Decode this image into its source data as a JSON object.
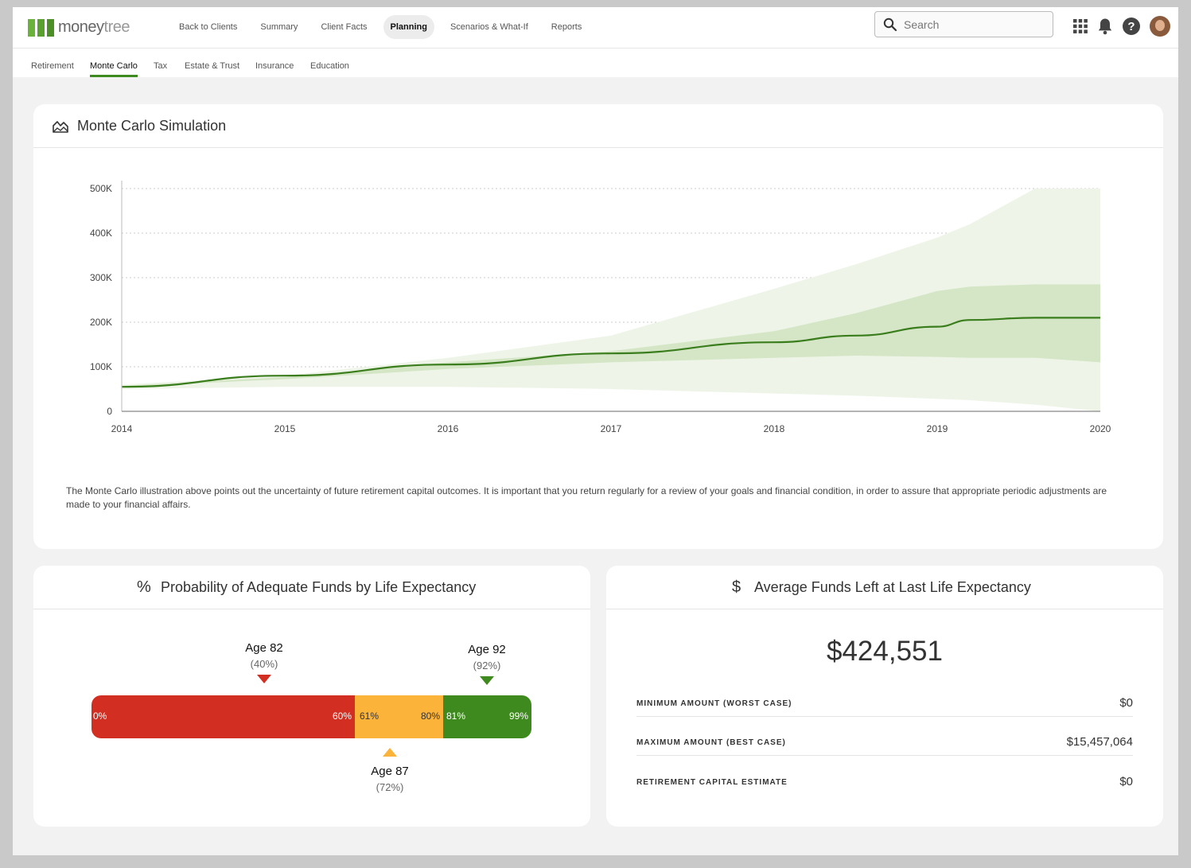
{
  "app": {
    "logo_money": "money",
    "logo_tree": "tree"
  },
  "nav": {
    "items": [
      "Back to Clients",
      "Summary",
      "Client Facts",
      "Planning",
      "Scenarios & What-If",
      "Reports"
    ],
    "active": "Planning"
  },
  "search": {
    "placeholder": "Search"
  },
  "subnav": {
    "items": [
      "Retirement",
      "Monte Carlo",
      "Tax",
      "Estate & Trust",
      "Insurance",
      "Education"
    ],
    "active": "Monte Carlo"
  },
  "monte_carlo": {
    "title": "Monte Carlo Simulation",
    "description": "The Monte Carlo illustration above points out the uncertainty of future retirement capital outcomes. It is important that you return regularly for a review of your goals and financial condition, in order to assure that appropriate periodic adjustments are made to your financial affairs."
  },
  "chart_data": {
    "type": "area",
    "x": [
      2014,
      2015,
      2016,
      2017,
      2018,
      2018.5,
      2019,
      2019.2,
      2019.6,
      2020
    ],
    "x_ticks": [
      "2014",
      "2015",
      "2016",
      "2017",
      "2018",
      "2019",
      "2020"
    ],
    "y_ticks": [
      "0",
      "100K",
      "200K",
      "300K",
      "400K",
      "500K"
    ],
    "ylim": [
      0,
      500000
    ],
    "grid": true,
    "series": [
      {
        "role": "outer_band_upper",
        "values": [
          60000,
          80000,
          120000,
          170000,
          275000,
          330000,
          390000,
          420000,
          500000,
          500000
        ]
      },
      {
        "role": "outer_band_lower",
        "values": [
          50000,
          55000,
          55000,
          50000,
          40000,
          35000,
          28000,
          25000,
          15000,
          0
        ]
      },
      {
        "role": "inner_band_upper",
        "values": [
          57000,
          77000,
          110000,
          135000,
          180000,
          220000,
          270000,
          280000,
          285000,
          285000
        ]
      },
      {
        "role": "inner_band_lower",
        "values": [
          55000,
          72000,
          95000,
          110000,
          120000,
          125000,
          122000,
          120000,
          120000,
          110000
        ]
      },
      {
        "role": "median",
        "values": [
          55000,
          80000,
          105000,
          130000,
          155000,
          170000,
          190000,
          205000,
          210000,
          210000
        ]
      }
    ],
    "colors": {
      "outer": "#eef5e8",
      "inner": "#d5e6c6",
      "line": "#3a7d1d"
    }
  },
  "probability": {
    "title": "Probability of Adequate Funds by Life Expectancy",
    "markers": [
      {
        "age": "Age 82",
        "pct": "(40%)",
        "color": "#d22f22"
      },
      {
        "age": "Age 87",
        "pct": "(72%)",
        "color": "#fbb33a"
      },
      {
        "age": "Age 92",
        "pct": "(92%)",
        "color": "#3f8a1f"
      }
    ],
    "segments": [
      {
        "start": "0%",
        "end": "60%",
        "color": "#d22f22"
      },
      {
        "start": "61%",
        "end": "80%",
        "color": "#fbb33a"
      },
      {
        "start": "81%",
        "end": "99%",
        "color": "#3f8a1f"
      }
    ]
  },
  "average": {
    "title": "Average Funds Left at Last Life Expectancy",
    "amount": "$424,551",
    "rows": [
      {
        "label": "MINIMUM AMOUNT (WORST CASE)",
        "value": "$0"
      },
      {
        "label": "MAXIMUM AMOUNT (BEST CASE)",
        "value": "$15,457,064"
      },
      {
        "label": "RETIREMENT CAPITAL ESTIMATE",
        "value": "$0"
      }
    ]
  }
}
